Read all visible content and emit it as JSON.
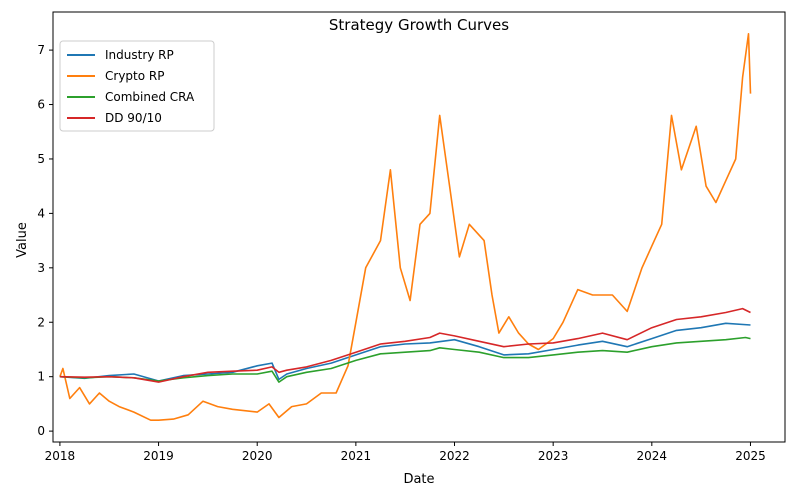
{
  "chart_data": {
    "type": "line",
    "title": "Strategy Growth Curves",
    "xlabel": "Date",
    "ylabel": "Value",
    "xlim": [
      2017.93,
      2025.35
    ],
    "ylim": [
      -0.2,
      7.7
    ],
    "x_ticks": [
      2018,
      2019,
      2020,
      2021,
      2022,
      2023,
      2024,
      2025
    ],
    "x_tick_labels": [
      "2018",
      "2019",
      "2020",
      "2021",
      "2022",
      "2023",
      "2024",
      "2025"
    ],
    "y_ticks": [
      0,
      1,
      2,
      3,
      4,
      5,
      6,
      7
    ],
    "y_tick_labels": [
      "0",
      "1",
      "2",
      "3",
      "4",
      "5",
      "6",
      "7"
    ],
    "grid": false,
    "legend_position": "top-left",
    "series": [
      {
        "name": "Industry RP",
        "color": "#1f77b4",
        "points": [
          [
            2018.0,
            1.0
          ],
          [
            2018.25,
            0.97
          ],
          [
            2018.5,
            1.02
          ],
          [
            2018.75,
            1.05
          ],
          [
            2019.0,
            0.92
          ],
          [
            2019.25,
            1.02
          ],
          [
            2019.5,
            1.05
          ],
          [
            2019.75,
            1.08
          ],
          [
            2020.0,
            1.2
          ],
          [
            2020.15,
            1.25
          ],
          [
            2020.22,
            0.95
          ],
          [
            2020.3,
            1.05
          ],
          [
            2020.5,
            1.15
          ],
          [
            2020.75,
            1.25
          ],
          [
            2021.0,
            1.4
          ],
          [
            2021.25,
            1.55
          ],
          [
            2021.5,
            1.6
          ],
          [
            2021.75,
            1.62
          ],
          [
            2022.0,
            1.68
          ],
          [
            2022.25,
            1.55
          ],
          [
            2022.5,
            1.4
          ],
          [
            2022.75,
            1.42
          ],
          [
            2023.0,
            1.5
          ],
          [
            2023.25,
            1.58
          ],
          [
            2023.5,
            1.65
          ],
          [
            2023.75,
            1.55
          ],
          [
            2024.0,
            1.7
          ],
          [
            2024.25,
            1.85
          ],
          [
            2024.5,
            1.9
          ],
          [
            2024.75,
            1.98
          ],
          [
            2025.0,
            1.95
          ]
        ]
      },
      {
        "name": "Crypto RP",
        "color": "#ff7f0e",
        "points": [
          [
            2018.0,
            1.0
          ],
          [
            2018.03,
            1.15
          ],
          [
            2018.1,
            0.6
          ],
          [
            2018.2,
            0.8
          ],
          [
            2018.3,
            0.5
          ],
          [
            2018.4,
            0.7
          ],
          [
            2018.5,
            0.55
          ],
          [
            2018.6,
            0.45
          ],
          [
            2018.75,
            0.35
          ],
          [
            2018.92,
            0.2
          ],
          [
            2019.0,
            0.2
          ],
          [
            2019.15,
            0.22
          ],
          [
            2019.3,
            0.3
          ],
          [
            2019.45,
            0.55
          ],
          [
            2019.6,
            0.45
          ],
          [
            2019.75,
            0.4
          ],
          [
            2020.0,
            0.35
          ],
          [
            2020.12,
            0.5
          ],
          [
            2020.22,
            0.25
          ],
          [
            2020.35,
            0.45
          ],
          [
            2020.5,
            0.5
          ],
          [
            2020.65,
            0.7
          ],
          [
            2020.8,
            0.7
          ],
          [
            2020.92,
            1.2
          ],
          [
            2021.0,
            2.0
          ],
          [
            2021.1,
            3.0
          ],
          [
            2021.25,
            3.5
          ],
          [
            2021.35,
            4.8
          ],
          [
            2021.45,
            3.0
          ],
          [
            2021.55,
            2.4
          ],
          [
            2021.65,
            3.8
          ],
          [
            2021.75,
            4.0
          ],
          [
            2021.85,
            5.8
          ],
          [
            2021.95,
            4.5
          ],
          [
            2022.05,
            3.2
          ],
          [
            2022.15,
            3.8
          ],
          [
            2022.3,
            3.5
          ],
          [
            2022.38,
            2.5
          ],
          [
            2022.45,
            1.8
          ],
          [
            2022.55,
            2.1
          ],
          [
            2022.65,
            1.8
          ],
          [
            2022.75,
            1.6
          ],
          [
            2022.85,
            1.5
          ],
          [
            2023.0,
            1.7
          ],
          [
            2023.1,
            2.0
          ],
          [
            2023.25,
            2.6
          ],
          [
            2023.4,
            2.5
          ],
          [
            2023.6,
            2.5
          ],
          [
            2023.75,
            2.2
          ],
          [
            2023.9,
            3.0
          ],
          [
            2024.0,
            3.4
          ],
          [
            2024.1,
            3.8
          ],
          [
            2024.2,
            5.8
          ],
          [
            2024.3,
            4.8
          ],
          [
            2024.45,
            5.6
          ],
          [
            2024.55,
            4.5
          ],
          [
            2024.65,
            4.2
          ],
          [
            2024.75,
            4.6
          ],
          [
            2024.85,
            5.0
          ],
          [
            2024.92,
            6.5
          ],
          [
            2024.98,
            7.3
          ],
          [
            2025.0,
            6.2
          ]
        ]
      },
      {
        "name": "Combined CRA",
        "color": "#2ca02c",
        "points": [
          [
            2018.0,
            1.0
          ],
          [
            2018.25,
            0.98
          ],
          [
            2018.5,
            1.0
          ],
          [
            2018.75,
            0.98
          ],
          [
            2019.0,
            0.92
          ],
          [
            2019.25,
            0.98
          ],
          [
            2019.5,
            1.02
          ],
          [
            2019.75,
            1.05
          ],
          [
            2020.0,
            1.05
          ],
          [
            2020.15,
            1.1
          ],
          [
            2020.22,
            0.9
          ],
          [
            2020.3,
            1.0
          ],
          [
            2020.5,
            1.08
          ],
          [
            2020.75,
            1.15
          ],
          [
            2021.0,
            1.3
          ],
          [
            2021.25,
            1.42
          ],
          [
            2021.5,
            1.45
          ],
          [
            2021.75,
            1.48
          ],
          [
            2021.85,
            1.53
          ],
          [
            2022.0,
            1.5
          ],
          [
            2022.25,
            1.45
          ],
          [
            2022.5,
            1.35
          ],
          [
            2022.75,
            1.35
          ],
          [
            2023.0,
            1.4
          ],
          [
            2023.25,
            1.45
          ],
          [
            2023.5,
            1.48
          ],
          [
            2023.75,
            1.45
          ],
          [
            2024.0,
            1.55
          ],
          [
            2024.25,
            1.62
          ],
          [
            2024.5,
            1.65
          ],
          [
            2024.75,
            1.68
          ],
          [
            2024.95,
            1.72
          ],
          [
            2025.0,
            1.7
          ]
        ]
      },
      {
        "name": "DD 90/10",
        "color": "#d62728",
        "points": [
          [
            2018.0,
            1.0
          ],
          [
            2018.25,
            0.99
          ],
          [
            2018.5,
            1.0
          ],
          [
            2018.75,
            0.98
          ],
          [
            2019.0,
            0.9
          ],
          [
            2019.25,
            1.0
          ],
          [
            2019.5,
            1.08
          ],
          [
            2019.75,
            1.1
          ],
          [
            2020.0,
            1.12
          ],
          [
            2020.15,
            1.18
          ],
          [
            2020.22,
            1.08
          ],
          [
            2020.3,
            1.12
          ],
          [
            2020.5,
            1.18
          ],
          [
            2020.75,
            1.3
          ],
          [
            2021.0,
            1.45
          ],
          [
            2021.25,
            1.6
          ],
          [
            2021.5,
            1.65
          ],
          [
            2021.75,
            1.72
          ],
          [
            2021.85,
            1.8
          ],
          [
            2022.0,
            1.75
          ],
          [
            2022.25,
            1.65
          ],
          [
            2022.5,
            1.55
          ],
          [
            2022.75,
            1.6
          ],
          [
            2023.0,
            1.62
          ],
          [
            2023.25,
            1.7
          ],
          [
            2023.5,
            1.8
          ],
          [
            2023.75,
            1.68
          ],
          [
            2024.0,
            1.9
          ],
          [
            2024.25,
            2.05
          ],
          [
            2024.5,
            2.1
          ],
          [
            2024.75,
            2.18
          ],
          [
            2024.92,
            2.25
          ],
          [
            2025.0,
            2.18
          ]
        ]
      }
    ]
  }
}
